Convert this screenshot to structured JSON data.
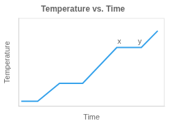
{
  "chart_data": {
    "type": "line",
    "title": "Temperature vs. Time",
    "x_label": "Time",
    "y_label": "Temperature",
    "x": [
      0.0,
      1.2,
      2.8,
      4.5,
      7.0,
      8.8,
      10.0
    ],
    "values": [
      0.0,
      0.0,
      1.4,
      1.4,
      4.2,
      4.2,
      5.5
    ],
    "xlim": [
      -0.2,
      10.5
    ],
    "ylim": [
      -0.4,
      6.5
    ],
    "tick_labels": false,
    "grid": false,
    "annotations": [
      {
        "text": "x",
        "x": 7.05,
        "y": 4.35
      },
      {
        "text": "y",
        "x": 8.55,
        "y": 4.35
      }
    ]
  }
}
